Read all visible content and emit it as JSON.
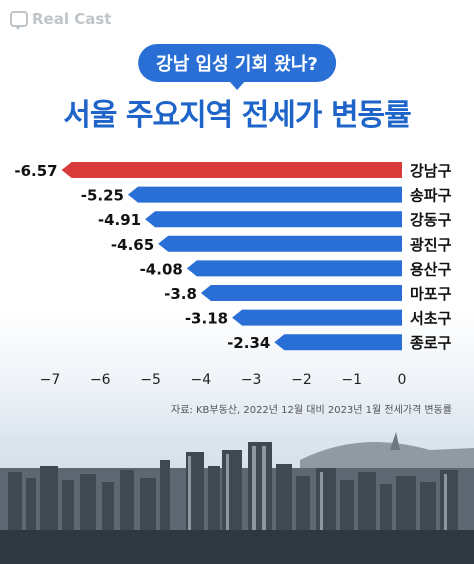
{
  "brand": {
    "name": "Real Cast"
  },
  "question_badge": "강남 입성 기회 왔나?",
  "headline": "서울 주요지역 전세가 변동률",
  "source_note": "자료: KB부동산, 2022년 12월 대비 2023년 1월 전세가격 변동률",
  "colors": {
    "highlight": "#d93a3a",
    "bars": "#2a6fd6"
  },
  "chart_data": {
    "type": "bar",
    "orientation": "horizontal",
    "categories": [
      "강남구",
      "송파구",
      "강동구",
      "광진구",
      "용산구",
      "마포구",
      "서초구",
      "종로구"
    ],
    "values": [
      -6.57,
      -5.25,
      -4.91,
      -4.65,
      -4.08,
      -3.8,
      -3.18,
      -2.34
    ],
    "value_labels": [
      "-6.57",
      "-5.25",
      "-4.91",
      "-4.65",
      "-4.08",
      "-3.8",
      "-3.18",
      "-2.34"
    ],
    "xticks": [
      "−7",
      "−6",
      "−5",
      "−4",
      "−3",
      "−2",
      "−1",
      "0"
    ],
    "xlim": [
      -7,
      0
    ],
    "title": "서울 주요지역 전세가 변동률",
    "highlight_index": 0
  }
}
